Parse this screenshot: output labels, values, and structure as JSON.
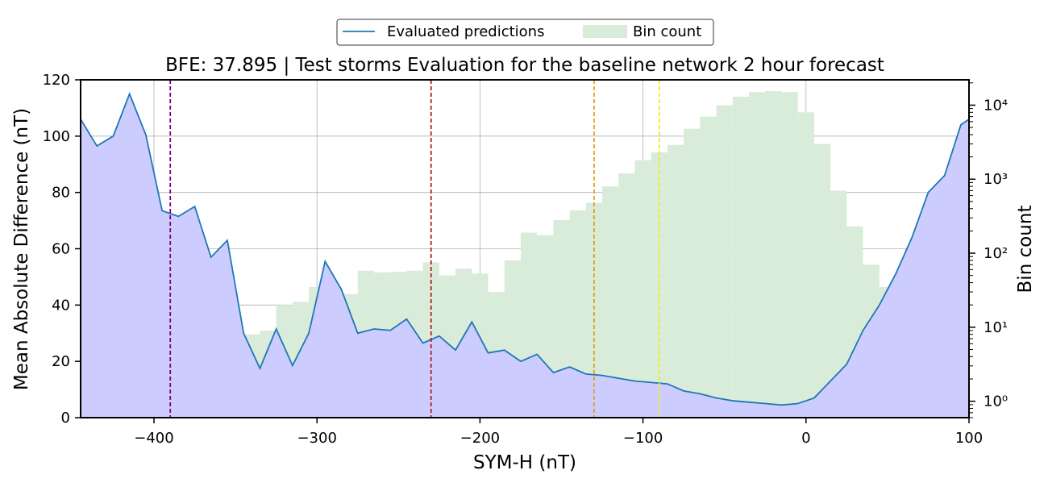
{
  "legend": {
    "line_label": "Evaluated predictions",
    "bar_label": "Bin count",
    "placement": "top-center"
  },
  "chart_data": {
    "type": "line",
    "title": "BFE: 37.895 | Test storms Evaluation for the baseline network 2 hour forecast",
    "xlabel": "SYM-H (nT)",
    "ylabel": "Mean Absolute Difference (nT)",
    "y2label": "Bin count",
    "xlim": [
      -445,
      100
    ],
    "ylim": [
      0,
      120
    ],
    "y2lim": [
      0.6,
      22000
    ],
    "y2scale": "log",
    "grid": true,
    "xticks": [
      -400,
      -300,
      -200,
      -100,
      0,
      100
    ],
    "xtick_labels": [
      "−400",
      "−300",
      "−200",
      "−100",
      "0",
      "100"
    ],
    "yticks": [
      0,
      20,
      40,
      60,
      80,
      100,
      120
    ],
    "ytick_labels": [
      "0",
      "20",
      "40",
      "60",
      "80",
      "100",
      "120"
    ],
    "y2ticks": [
      1,
      10,
      100,
      1000,
      10000
    ],
    "y2tick_labels": [
      "10⁰",
      "10¹",
      "10²",
      "10³",
      "10⁴"
    ],
    "colors": {
      "line": "#1f77b4",
      "line_fill": "#ccccff",
      "bars": "#d9ebd9",
      "bars_over_fill": "#b0bed8"
    },
    "series": [
      {
        "name": "Evaluated predictions",
        "x": [
          -445,
          -435,
          -425,
          -415,
          -405,
          -395,
          -385,
          -375,
          -365,
          -355,
          -345,
          -335,
          -325,
          -315,
          -305,
          -295,
          -285,
          -275,
          -265,
          -255,
          -245,
          -235,
          -225,
          -215,
          -205,
          -195,
          -185,
          -175,
          -165,
          -155,
          -145,
          -135,
          -125,
          -115,
          -105,
          -95,
          -85,
          -75,
          -65,
          -55,
          -45,
          -35,
          -25,
          -15,
          -5,
          5,
          15,
          25,
          35,
          45,
          55,
          65,
          75,
          85,
          95,
          100
        ],
        "values": [
          106,
          96.5,
          100,
          115,
          100.5,
          73.5,
          71.5,
          75,
          57,
          63,
          30,
          17.5,
          31.5,
          18.5,
          30,
          55.5,
          45.5,
          30,
          31.5,
          31,
          35,
          26.5,
          29,
          24,
          34,
          23,
          24,
          20,
          22.5,
          16,
          18,
          15.5,
          15,
          14,
          13,
          12.5,
          12,
          9.5,
          8.5,
          7,
          6,
          5.5,
          5,
          4.5,
          5,
          7,
          13,
          19,
          31,
          40,
          51,
          64,
          80,
          86,
          104,
          106
        ]
      },
      {
        "name": "Bin count",
        "bin_edges": [
          -445,
          -435,
          -425,
          -415,
          -405,
          -395,
          -385,
          -375,
          -365,
          -355,
          -345,
          -335,
          -325,
          -315,
          -305,
          -295,
          -285,
          -275,
          -265,
          -255,
          -245,
          -235,
          -225,
          -215,
          -205,
          -195,
          -185,
          -175,
          -165,
          -155,
          -145,
          -135,
          -125,
          -115,
          -105,
          -95,
          -85,
          -75,
          -65,
          -55,
          -45,
          -35,
          -25,
          -15,
          -5,
          5,
          15,
          25,
          35,
          45,
          55,
          65,
          75,
          85,
          95,
          100
        ],
        "values": [
          2,
          2,
          9,
          5,
          4,
          15,
          19,
          13,
          4,
          8,
          8,
          9,
          20,
          22,
          35,
          35,
          28,
          58,
          55,
          56,
          58,
          75,
          50,
          62,
          53,
          30,
          80,
          190,
          175,
          280,
          380,
          480,
          800,
          1200,
          1800,
          2300,
          2900,
          4800,
          7000,
          10000,
          13000,
          15000,
          15500,
          15000,
          8000,
          3000,
          700,
          230,
          70,
          35,
          35,
          13,
          5,
          1,
          1
        ]
      }
    ],
    "vlines": [
      {
        "x": -390,
        "color": "#800080"
      },
      {
        "x": -230,
        "color": "#b22222"
      },
      {
        "x": -130,
        "color": "#e0a020"
      },
      {
        "x": -90,
        "color": "#f0f020"
      }
    ]
  }
}
